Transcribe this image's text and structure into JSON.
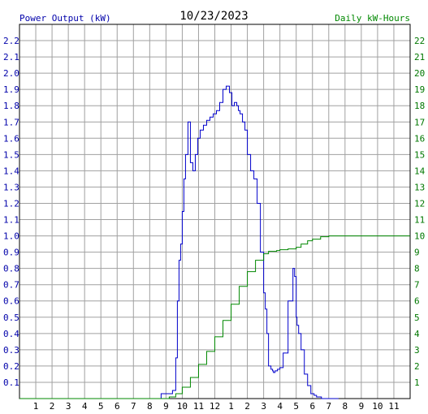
{
  "chart_data": {
    "type": "line",
    "title": "10/23/2023",
    "ylabel_left": "Power Output (kW)",
    "ylabel_right": "Daily kW-Hours",
    "colors": {
      "power": "#0000cc",
      "energy": "#008800",
      "grid": "#a0a0a0"
    },
    "x_ticks": [
      "1",
      "2",
      "3",
      "4",
      "5",
      "6",
      "7",
      "8",
      "9",
      "10",
      "11",
      "12",
      "1",
      "2",
      "3",
      "4",
      "5",
      "6",
      "7",
      "8",
      "9",
      "10",
      "11"
    ],
    "y_left_ticks": [
      "0.1",
      "0.2",
      "0.3",
      "0.4",
      "0.5",
      "0.6",
      "0.7",
      "0.8",
      "0.9",
      "1.0",
      "1.1",
      "1.2",
      "1.3",
      "1.4",
      "1.5",
      "1.6",
      "1.7",
      "1.8",
      "1.9",
      "2.0",
      "2.1",
      "2.2"
    ],
    "y_right_ticks": [
      "1",
      "2",
      "3",
      "4",
      "5",
      "6",
      "7",
      "8",
      "9",
      "10",
      "11",
      "12",
      "13",
      "14",
      "15",
      "16",
      "17",
      "18",
      "19",
      "20",
      "21",
      "22"
    ],
    "xlim": [
      0,
      24
    ],
    "ylim_left": [
      0,
      2.3
    ],
    "ylim_right": [
      0,
      23
    ],
    "grid": true,
    "series": [
      {
        "name": "Power Output (kW)",
        "axis": "left",
        "x": [
          8.5,
          8.7,
          9.0,
          9.4,
          9.6,
          9.7,
          9.8,
          9.9,
          10.0,
          10.1,
          10.2,
          10.35,
          10.5,
          10.65,
          10.8,
          10.95,
          11.1,
          11.3,
          11.5,
          11.7,
          11.9,
          12.1,
          12.3,
          12.5,
          12.7,
          12.9,
          13.05,
          13.2,
          13.35,
          13.45,
          13.55,
          13.7,
          13.85,
          14.0,
          14.2,
          14.4,
          14.6,
          14.8,
          15.0,
          15.1,
          15.2,
          15.3,
          15.45,
          15.55,
          15.6,
          15.7,
          15.85,
          16.0,
          16.2,
          16.5,
          16.8,
          16.9,
          17.0,
          17.05,
          17.15,
          17.3,
          17.5,
          17.7,
          17.9,
          18.1,
          18.25,
          18.4,
          18.55,
          18.8,
          19.2,
          19.6
        ],
        "y": [
          0.0,
          0.03,
          0.03,
          0.05,
          0.25,
          0.6,
          0.85,
          0.95,
          1.15,
          1.35,
          1.5,
          1.7,
          1.45,
          1.4,
          1.5,
          1.6,
          1.65,
          1.68,
          1.71,
          1.73,
          1.75,
          1.77,
          1.82,
          1.9,
          1.92,
          1.88,
          1.8,
          1.82,
          1.8,
          1.77,
          1.75,
          1.7,
          1.65,
          1.5,
          1.4,
          1.35,
          1.2,
          0.9,
          0.65,
          0.55,
          0.4,
          0.2,
          0.18,
          0.17,
          0.16,
          0.17,
          0.18,
          0.19,
          0.28,
          0.6,
          0.8,
          0.75,
          0.5,
          0.45,
          0.4,
          0.3,
          0.15,
          0.08,
          0.03,
          0.02,
          0.01,
          0.01,
          0.0,
          0.0,
          0.0,
          0.0
        ]
      },
      {
        "name": "Daily kW-Hours",
        "axis": "right",
        "x": [
          0,
          8.5,
          9.2,
          9.6,
          10.0,
          10.5,
          11.0,
          11.5,
          12.0,
          12.5,
          13.0,
          13.5,
          14.0,
          14.5,
          15.0,
          15.3,
          15.8,
          16.0,
          16.5,
          17.0,
          17.3,
          17.7,
          18.0,
          18.5,
          19.0,
          20.0,
          24.0
        ],
        "y": [
          0,
          0,
          0.1,
          0.3,
          0.7,
          1.3,
          2.1,
          2.9,
          3.8,
          4.8,
          5.8,
          6.9,
          7.8,
          8.5,
          8.9,
          9.05,
          9.1,
          9.15,
          9.2,
          9.3,
          9.5,
          9.7,
          9.8,
          9.95,
          10.0,
          10.0,
          10.0
        ]
      }
    ]
  }
}
